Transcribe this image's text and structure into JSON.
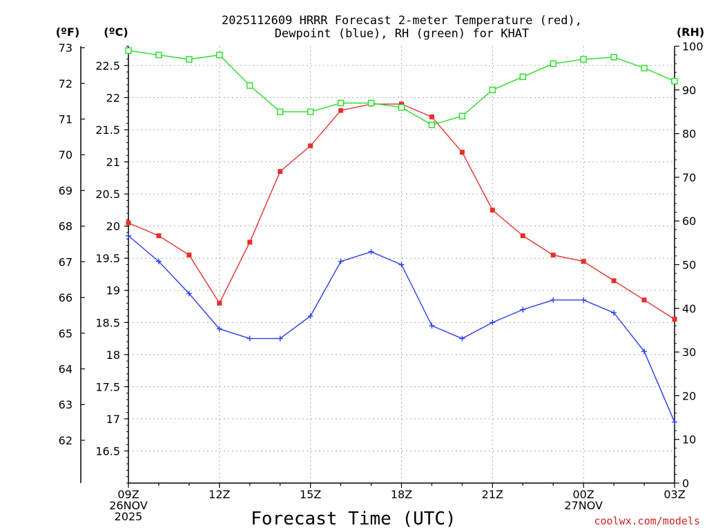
{
  "header": {
    "title_line1": "2025112609 HRRR Forecast 2-meter Temperature (red),",
    "title_line2": "Dewpoint (blue), RH (green) for KHAT"
  },
  "axes": {
    "left_outer_unit": "(ºF)",
    "left_inner_unit": "(ºC)",
    "right_unit": "(RH)",
    "xlabel": "Forecast Time (UTC)"
  },
  "footer": {
    "credit": "coolwx.com/models"
  },
  "chart_data": {
    "type": "line",
    "title": "2025112609 HRRR Forecast 2-meter Temperature (red), Dewpoint (blue), RH (green) for KHAT",
    "xlabel": "Forecast Time (UTC)",
    "x_tick_labels": [
      {
        "hour": 0,
        "lines": [
          "09Z",
          "26NOV",
          "2025"
        ]
      },
      {
        "hour": 3,
        "lines": [
          "12Z"
        ]
      },
      {
        "hour": 6,
        "lines": [
          "15Z"
        ]
      },
      {
        "hour": 9,
        "lines": [
          "18Z"
        ]
      },
      {
        "hour": 12,
        "lines": [
          "21Z"
        ]
      },
      {
        "hour": 15,
        "lines": [
          "00Z",
          "27NOV"
        ]
      },
      {
        "hour": 18,
        "lines": [
          "03Z"
        ]
      }
    ],
    "xlim": [
      0,
      18
    ],
    "celsius_axis": {
      "ylim": [
        16.0,
        22.8
      ],
      "ticks": [
        16.5,
        17,
        17.5,
        18,
        18.5,
        19,
        19.5,
        20,
        20.5,
        21,
        21.5,
        22,
        22.5
      ],
      "tick_labels": [
        "16.5",
        "17",
        "17.5",
        "18",
        "18.5",
        "19",
        "19.5",
        "20",
        "20.5",
        "21",
        "21.5",
        "22",
        "22.5"
      ]
    },
    "fahrenheit_axis": {
      "ticks": [
        62,
        63,
        64,
        65,
        66,
        67,
        68,
        69,
        70,
        71,
        72,
        73
      ],
      "tick_labels": [
        "62",
        "63",
        "64",
        "65",
        "66",
        "67",
        "68",
        "69",
        "70",
        "71",
        "72",
        "73"
      ]
    },
    "rh_axis": {
      "ylim": [
        0,
        100
      ],
      "ticks": [
        0,
        10,
        20,
        30,
        40,
        50,
        60,
        70,
        80,
        90,
        100
      ],
      "tick_labels": [
        "0",
        "10",
        "20",
        "30",
        "40",
        "50",
        "60",
        "70",
        "80",
        "90",
        "100"
      ]
    },
    "grid": true,
    "series": [
      {
        "color": "#e8302c",
        "marker": "filled-square",
        "axis": "celsius",
        "x": [
          0,
          1,
          2,
          3,
          4,
          5,
          6,
          7,
          8,
          9,
          10,
          11,
          12,
          13,
          14,
          15,
          16,
          17,
          18
        ],
        "values": [
          20.05,
          19.85,
          19.55,
          18.8,
          19.75,
          20.85,
          21.25,
          21.8,
          21.9,
          21.9,
          21.7,
          21.15,
          20.25,
          19.85,
          19.55,
          19.45,
          19.15,
          18.85,
          18.55
        ]
      },
      {
        "color": "#2a3cf0",
        "marker": "plus",
        "axis": "celsius",
        "x": [
          0,
          1,
          2,
          3,
          4,
          5,
          6,
          7,
          8,
          9,
          10,
          11,
          12,
          13,
          14,
          15,
          16,
          17,
          18
        ],
        "values": [
          19.85,
          19.45,
          18.95,
          18.4,
          18.25,
          18.25,
          18.6,
          19.45,
          19.6,
          19.4,
          18.45,
          18.25,
          18.5,
          18.7,
          18.85,
          18.85,
          18.65,
          18.05,
          16.95
        ]
      },
      {
        "color": "#22dd22",
        "marker": "open-square",
        "axis": "rh",
        "x": [
          0,
          1,
          2,
          3,
          4,
          5,
          6,
          7,
          8,
          9,
          10,
          11,
          12,
          13,
          14,
          15,
          16,
          17,
          18
        ],
        "values": [
          99,
          98,
          97,
          98,
          91,
          85,
          85,
          87,
          87,
          86,
          82,
          84,
          90,
          93,
          96,
          97,
          97.5,
          95,
          92
        ]
      }
    ]
  }
}
